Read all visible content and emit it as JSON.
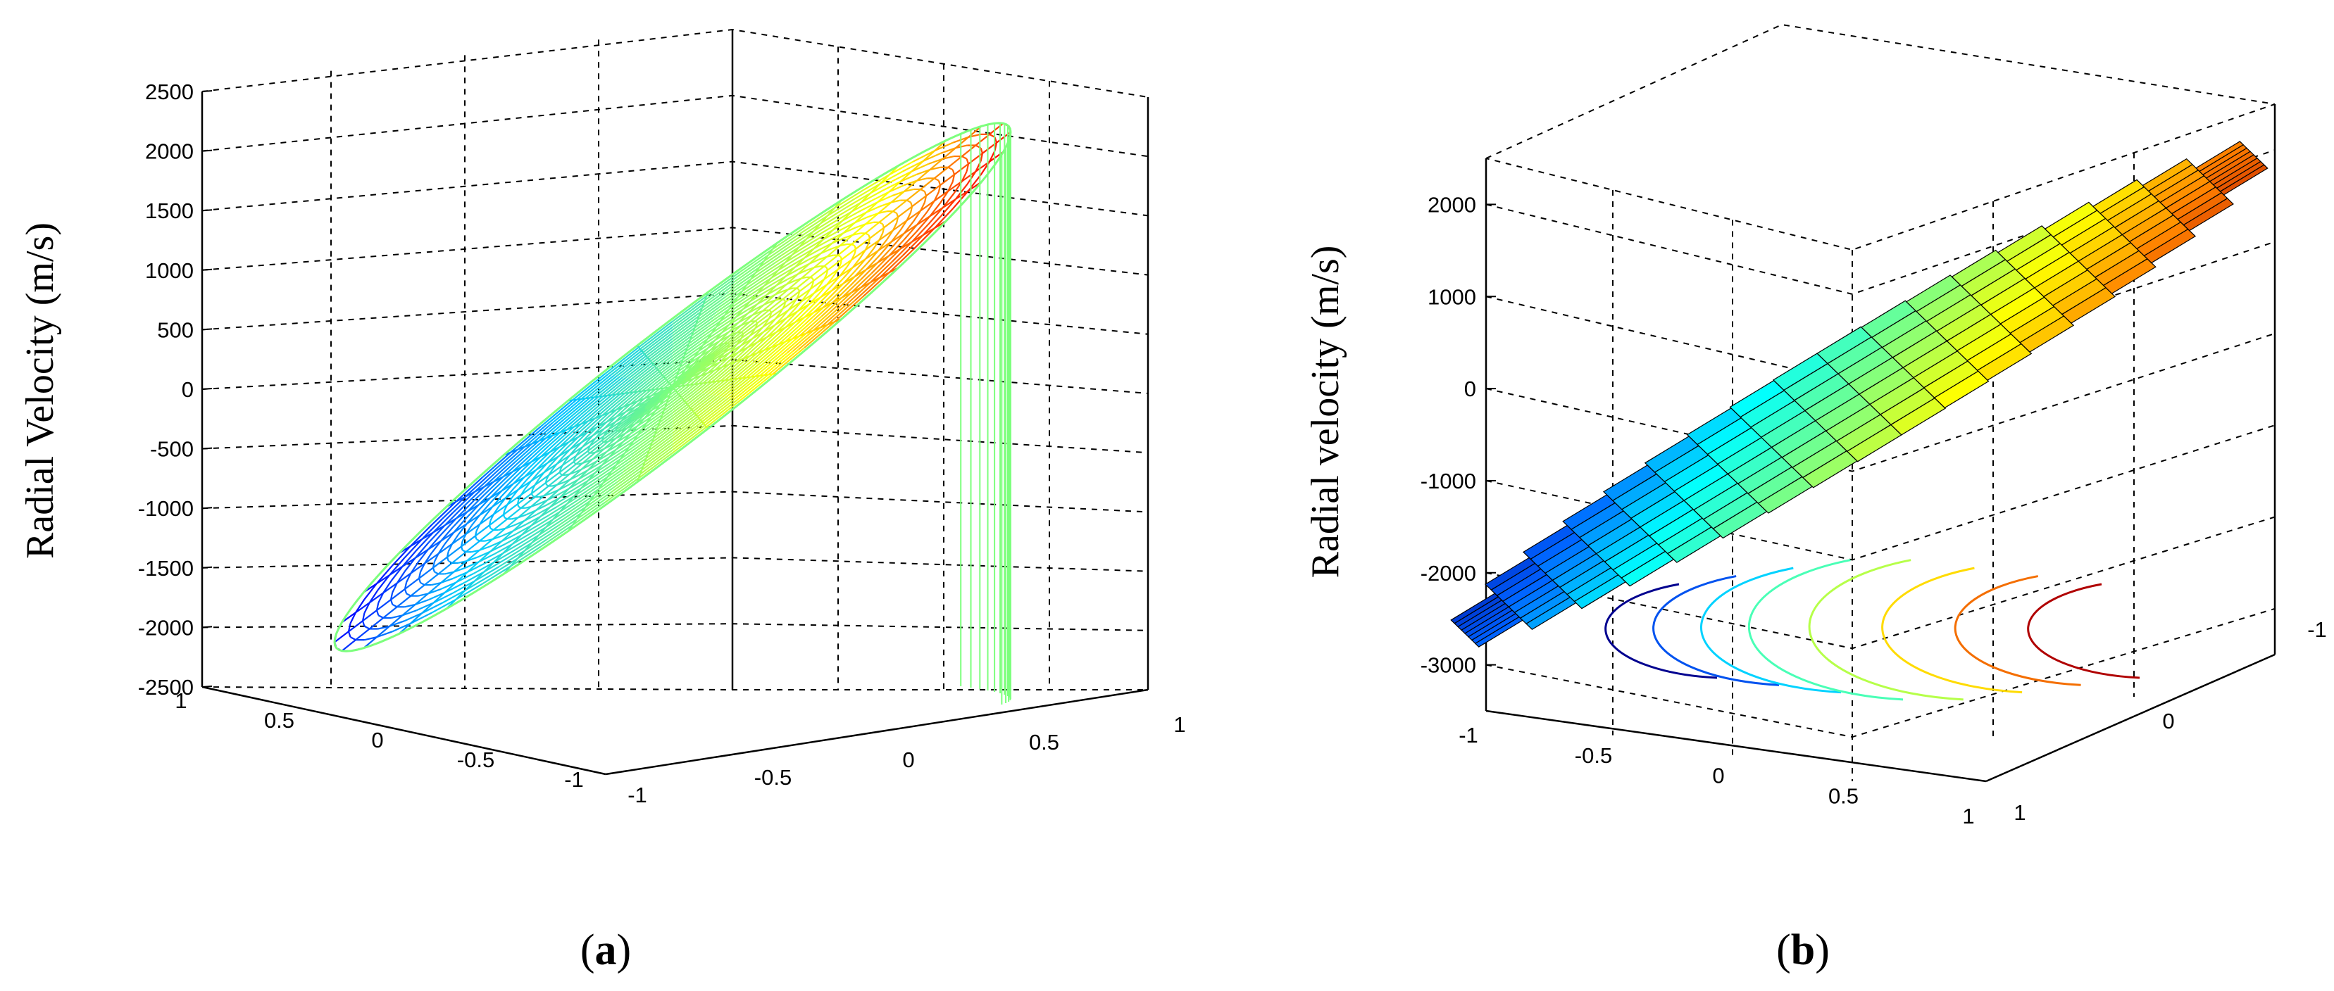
{
  "chart_data": [
    {
      "type": "surface-3d-mesh",
      "panel_label": "a",
      "title": "",
      "xlabel": "",
      "ylabel": "Radial Velocity (m/s)",
      "zlim": [
        -2500,
        2500
      ],
      "z_ticks": [
        "2500",
        "2000",
        "1500",
        "1000",
        "500",
        "0",
        "-500",
        "-1000",
        "-1500",
        "-2000",
        "-2500"
      ],
      "x_ticks": [
        "1",
        "0.5",
        "0",
        "-0.5",
        "-1"
      ],
      "y_ticks": [
        "-1",
        "-0.5",
        "0",
        "0.5",
        "1"
      ],
      "grid": true,
      "colormap": [
        "#0000ff",
        "#00c8ff",
        "#7dff7d",
        "#ffff00",
        "#ff0000"
      ],
      "mesh_rings": 24,
      "mesh_spokes": 30
    },
    {
      "type": "surface-3d-with-contour",
      "panel_label": "b",
      "title": "",
      "xlabel": "",
      "ylabel": "Radial velocity (m/s)",
      "zlim": [
        -3500,
        2500
      ],
      "z_ticks": [
        "2000",
        "1000",
        "0",
        "-1000",
        "-2000",
        "-3000"
      ],
      "x_ticks": [
        "-1",
        "-0.5",
        "0",
        "0.5",
        "1"
      ],
      "y_ticks": [
        "-1",
        "0",
        "1"
      ],
      "grid": true,
      "colormap": [
        "#00008f",
        "#0060ff",
        "#00ffff",
        "#80ff80",
        "#ffff00",
        "#ff8000",
        "#b00000"
      ],
      "contour_levels": 8
    }
  ]
}
